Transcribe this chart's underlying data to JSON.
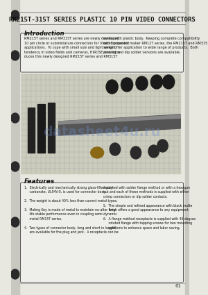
{
  "bg_color": "#d8d8d0",
  "page_bg": "#e8e8e0",
  "title": "RM215T-315T SERIES PLASTIC 10 PIN VIDEO CONNECTORS",
  "title_fontsize": 6.5,
  "intro_heading": "Introduction",
  "intro_text_left": "RM215T series and RM315T series are newly developed\n10 pin circle or subminiature connectors for Video Equipment\napplications.  To cope with small size and light weight\ntendency in video fields and cameras, HIROSE now intro-\nduces this newly designed RM215T series and RM315T",
  "intro_text_right": "series with plastic body.  Keeping complete compatibility\nwith connector maker RM12T series, the RM215T and RM315\nseries offer application to wide range of products.  Both\npinning and dip solder versions are available.",
  "features_heading": "Features",
  "features_items": [
    "1.  Electrically and mechanically strong glass-filled poly-\n     carbonate, UL94V-0, is used for connector body.",
    "2.  The weight is about 40% less than current metal types.",
    "3.  Mating Key is made of metal to maintain no-alter long\n     life stable performance even in coupling semi-dynamic\n     metal RM15T series.",
    "4.  Two types of connector body, long and short in length,\n     are available for the plug and jack.  A receptacle can be"
  ],
  "features_items_right": [
    "mounted with solder flange method or with a hexagon\nnut and each of these methods is supplied with either\ncrimp connectors or dip solder contacts.",
    "5.  The simple and refined appearance with black matte\n     finish offers a good appearance to any equipment.",
    "6.  A flange method receptacle is supplied with 45 degree\n     rotated flange with tapping screws for two mounting\n     positions to enhance space and labor saving."
  ],
  "page_number": "61",
  "hole_color": "#2a2a2a",
  "sidebar_color": "#b0b0a8",
  "watermark": "datasheet4u.ru"
}
